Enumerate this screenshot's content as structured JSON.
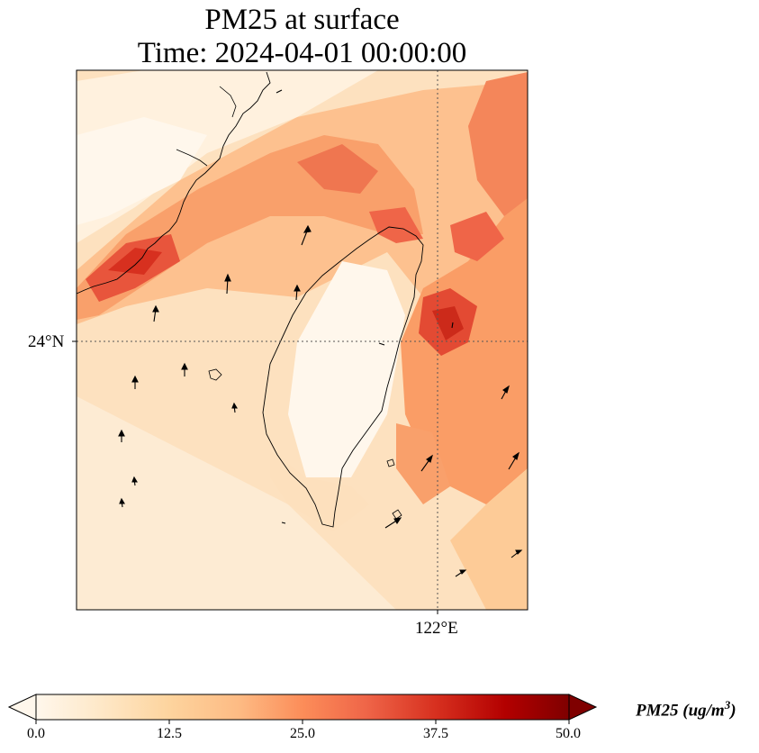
{
  "title": {
    "line1": "PM25 at surface",
    "line2": "Time: 2024-04-01 00:00:00"
  },
  "map": {
    "lat_label": "24°N",
    "lon_label": "122°E",
    "region": "Taiwan Strait and Taiwan",
    "gridlines": "dotted"
  },
  "colorbar": {
    "cmap": "OrRd",
    "vmin": 0.0,
    "vmax": 50.0,
    "extend": "both",
    "tick_labels": [
      "0.0",
      "12.5",
      "25.0",
      "37.5",
      "50.0"
    ],
    "units_label_prefix": "PM25 (ug/m",
    "units_label_sup": "3",
    "units_label_suffix": ")"
  },
  "colors": {
    "low": "#fff7ec",
    "mid": "#fc8d59",
    "high": "#7f0000",
    "coast": "#000000"
  }
}
